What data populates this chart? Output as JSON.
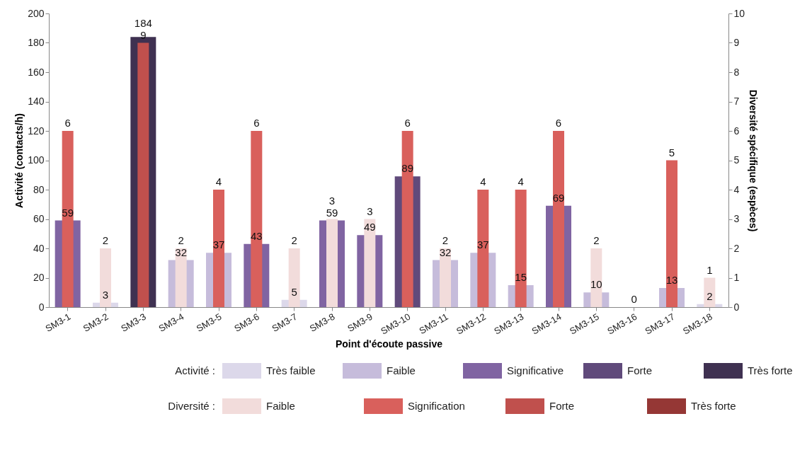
{
  "chart_data": {
    "type": "bar",
    "xlabel": "Point d'écoute passive",
    "ylabel": "Activité (contacts/h)",
    "y2label": "Diversité spécifique (espèces)",
    "categories": [
      "SM3-1",
      "SM3-2",
      "SM3-3",
      "SM3-4",
      "SM3-5",
      "SM3-6",
      "SM3-7",
      "SM3-8",
      "SM3-9",
      "SM3-10",
      "SM3-11",
      "SM3-12",
      "SM3-13",
      "SM3-14",
      "SM3-15",
      "SM3-16",
      "SM3-17",
      "SM3-18"
    ],
    "ylim": [
      0,
      200
    ],
    "yticks": [
      0,
      20,
      40,
      60,
      80,
      100,
      120,
      140,
      160,
      180,
      200
    ],
    "y2lim": [
      0,
      10
    ],
    "y2ticks": [
      0,
      1,
      2,
      3,
      4,
      5,
      6,
      7,
      8,
      9,
      10
    ],
    "data_labels": true,
    "legend": "bottom",
    "annotations": [
      "Activité :",
      "Diversité :"
    ],
    "series": [
      {
        "name": "Très faible",
        "color": "#dcd8ea",
        "values": [
          null,
          3,
          null,
          null,
          null,
          null,
          5,
          null,
          null,
          null,
          null,
          null,
          null,
          null,
          null,
          0,
          null,
          2
        ]
      },
      {
        "name": "Faible",
        "color": "#c6bcdb",
        "values": [
          null,
          null,
          null,
          32,
          37,
          null,
          null,
          null,
          null,
          null,
          32,
          37,
          15,
          null,
          10,
          null,
          13,
          null
        ]
      },
      {
        "name": "Significative",
        "color": "#8064a2",
        "values": [
          59,
          null,
          null,
          null,
          null,
          43,
          null,
          59,
          49,
          null,
          null,
          null,
          null,
          69,
          null,
          null,
          null,
          null
        ]
      },
      {
        "name": "Forte",
        "color": "#604a7b",
        "values": [
          null,
          null,
          null,
          null,
          null,
          null,
          null,
          null,
          null,
          89,
          null,
          null,
          null,
          null,
          null,
          null,
          null,
          null
        ]
      },
      {
        "name": "Très forte",
        "color": "#3f3151",
        "values": [
          null,
          null,
          184,
          null,
          null,
          null,
          null,
          null,
          null,
          null,
          null,
          null,
          null,
          null,
          null,
          null,
          null,
          null
        ]
      },
      {
        "name": "Faible",
        "color": "#f2dcdb",
        "axis": "y2",
        "values": [
          null,
          2,
          null,
          2,
          null,
          null,
          2,
          3,
          3,
          null,
          2,
          null,
          null,
          null,
          2,
          null,
          null,
          1
        ]
      },
      {
        "name": "Signification",
        "color": "#d9605c",
        "axis": "y2",
        "values": [
          6,
          null,
          null,
          null,
          4,
          6,
          null,
          null,
          null,
          6,
          null,
          4,
          4,
          6,
          null,
          null,
          5,
          null
        ]
      },
      {
        "name": "Forte",
        "color": "#c0504d",
        "axis": "y2",
        "values": [
          null,
          null,
          9,
          null,
          null,
          null,
          null,
          null,
          null,
          null,
          null,
          null,
          null,
          null,
          null,
          null,
          null,
          null
        ]
      },
      {
        "name": "Très forte",
        "color": "#953735",
        "axis": "y2",
        "values": [
          null,
          null,
          null,
          null,
          null,
          null,
          null,
          null,
          null,
          null,
          null,
          null,
          null,
          null,
          null,
          null,
          null,
          null
        ]
      }
    ]
  }
}
